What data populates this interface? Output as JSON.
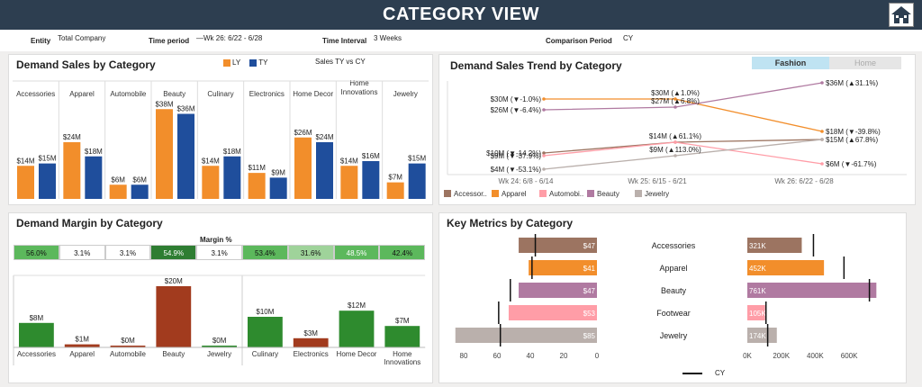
{
  "header": {
    "title": "CATEGORY VIEW",
    "home_icon": "home-icon"
  },
  "filters": {
    "entity_label": "Entity",
    "entity_value": "Total Company",
    "period_label": "Time period",
    "period_value": "—Wk 26: 6/22 - 6/28",
    "interval_label": "Time Interval",
    "interval_value": "3 Weeks",
    "comparison_label": "Comparison Period",
    "comparison_value": "CY"
  },
  "colors": {
    "ly": "#f28e2b",
    "ty": "#1f4e9c",
    "accessories": "#9c7461",
    "apparel": "#f28e2b",
    "automobile": "#ff9da7",
    "beauty": "#b07aa1",
    "jewelry": "#bab0ac",
    "footwear": "#ff9da7",
    "green_dark": "#2e7d32",
    "green_mid": "#5cb85c",
    "green_light": "#9fd39a",
    "rust": "#a23b1e"
  },
  "demand_sales": {
    "title": "Demand Sales by Category",
    "legend_ly": "LY",
    "legend_ty": "TY",
    "subtitle": "Sales TY vs CY"
  },
  "margin": {
    "title": "Demand Margin by Category",
    "header": "Margin %"
  },
  "trend": {
    "title": "Demand Sales Trend by Category",
    "tab_fashion": "Fashion",
    "tab_home": "Home"
  },
  "key_metrics": {
    "title": "Key Metrics by Category",
    "legend": "CY"
  },
  "chart_data": [
    {
      "type": "bar",
      "title": "Demand Sales by Category",
      "categories": [
        "Accessories",
        "Apparel",
        "Automobile",
        "Beauty",
        "Culinary",
        "Electronics",
        "Home Decor",
        "Home Innovations",
        "Jewelry"
      ],
      "series": [
        {
          "name": "LY",
          "values": [
            14,
            24,
            6,
            38,
            14,
            11,
            26,
            14,
            7
          ],
          "labels": [
            "$14M",
            "$24M",
            "$6M",
            "$38M",
            "$14M",
            "$11M",
            "$26M",
            "$14M",
            "$7M"
          ]
        },
        {
          "name": "TY",
          "values": [
            15,
            18,
            6,
            36,
            18,
            9,
            24,
            16,
            15
          ],
          "labels": [
            "$15M",
            "$18M",
            "$6M",
            "$36M",
            "$18M",
            "$9M",
            "$24M",
            "$16M",
            "$15M"
          ]
        }
      ]
    },
    {
      "type": "table",
      "title": "Margin %",
      "categories": [
        "Accessories",
        "Apparel",
        "Automobile",
        "Beauty",
        "Culinary",
        "Electronics",
        "Home Decor",
        "Home Innovations",
        "Jewelry"
      ],
      "order": [
        "Accessories",
        "Apparel",
        "Automobile",
        "Beauty",
        "Jewelry",
        "Culinary",
        "Electronics",
        "Home Decor",
        "Home Innovations"
      ],
      "values": [
        "56.0%",
        "3.1%",
        "3.1%",
        "54.9%",
        "3.1%",
        "53.4%",
        "31.6%",
        "48.5%",
        "42.4%"
      ]
    },
    {
      "type": "bar",
      "title": "Demand Margin by Category",
      "categories": [
        "Accessories",
        "Apparel",
        "Automobile",
        "Beauty",
        "Jewelry",
        "Culinary",
        "Electronics",
        "Home Decor",
        "Home Innovations"
      ],
      "values": [
        8,
        1,
        0,
        20,
        0,
        10,
        3,
        12,
        7
      ],
      "labels": [
        "$8M",
        "$1M",
        "$0M",
        "$20M",
        "$0M",
        "$10M",
        "$3M",
        "$12M",
        "$7M"
      ]
    },
    {
      "type": "line",
      "title": "Demand Sales Trend by Category",
      "x": [
        "Wk 24: 6/8 - 6/14",
        "Wk 25: 6/15 - 6/21",
        "Wk 26: 6/22 - 6/28"
      ],
      "series": [
        {
          "name": "Accessories",
          "values": [
            10,
            14,
            15
          ],
          "labels": [
            "$10M (▼-14.2%)",
            "$14M (▲61.1%)",
            "$15M (▲67.8%)"
          ]
        },
        {
          "name": "Apparel",
          "values": [
            30,
            30,
            18
          ],
          "labels": [
            "$30M (▼-1.0%)",
            "$30M (▲1.0%)",
            "$18M (▼-39.8%)"
          ]
        },
        {
          "name": "Automobile",
          "values": [
            9,
            14,
            6
          ],
          "labels": [
            "$9M (▼-37.9%)",
            "",
            "$6M (▼-61.7%)"
          ]
        },
        {
          "name": "Beauty",
          "values": [
            26,
            27,
            36
          ],
          "labels": [
            "$26M (▼-6.4%)",
            "$27M (▲6.8%)",
            "$36M (▲31.1%)"
          ]
        },
        {
          "name": "Jewelry",
          "values": [
            4,
            9,
            15
          ],
          "labels": [
            "$4M (▼-53.1%)",
            "$9M (▲113.0%)",
            ""
          ]
        }
      ],
      "legend": [
        "Accessor..",
        "Apparel",
        "Automobi..",
        "Beauty",
        "Jewelry"
      ]
    },
    {
      "type": "bar",
      "title": "Key Metrics by Category",
      "categories": [
        "Accessories",
        "Apparel",
        "Beauty",
        "Footwear",
        "Jewelry"
      ],
      "series": [
        {
          "values": [
            47,
            41,
            47,
            53,
            85
          ],
          "labels": [
            "$47",
            "$41",
            "$47",
            "$53",
            "$85"
          ],
          "cy_marker": [
            37,
            39,
            52,
            59,
            58
          ],
          "axis_ticks": [
            "80",
            "60",
            "40",
            "20",
            "0"
          ]
        },
        {
          "values": [
            321,
            452,
            761,
            105,
            174
          ],
          "labels": [
            "321K",
            "452K",
            "761K",
            "105K",
            "174K"
          ],
          "cy_marker": [
            390,
            570,
            720,
            110,
            120
          ],
          "axis_ticks": [
            "0K",
            "200K",
            "400K",
            "600K"
          ]
        }
      ]
    }
  ]
}
